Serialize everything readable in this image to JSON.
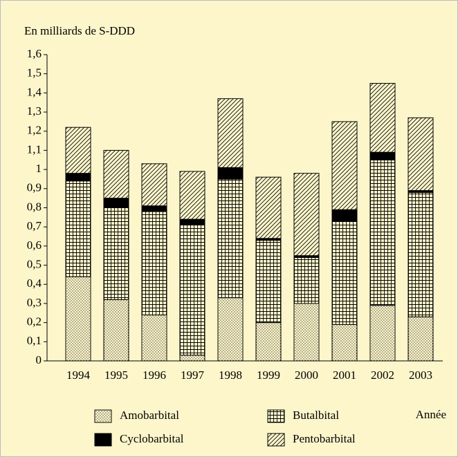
{
  "chart_data": {
    "type": "stacked_bar",
    "y_axis_label": "En milliards de S-DDD",
    "x_axis_label": "Année",
    "categories": [
      "1994",
      "1995",
      "1996",
      "1997",
      "1998",
      "1999",
      "2000",
      "2001",
      "2002",
      "2003"
    ],
    "series": [
      {
        "name": "Amobarbital",
        "color": "#000000",
        "pattern": "dots",
        "values": [
          0.44,
          0.32,
          0.24,
          0.03,
          0.33,
          0.2,
          0.3,
          0.19,
          0.29,
          0.23
        ]
      },
      {
        "name": "Butalbital",
        "color": "#000000",
        "pattern": "grid",
        "values": [
          0.5,
          0.48,
          0.54,
          0.68,
          0.62,
          0.43,
          0.24,
          0.54,
          0.76,
          0.65
        ]
      },
      {
        "name": "Cyclobarbital",
        "color": "#000000",
        "pattern": "solid",
        "values": [
          0.04,
          0.05,
          0.03,
          0.03,
          0.06,
          0.01,
          0.01,
          0.06,
          0.04,
          0.01
        ]
      },
      {
        "name": "Pentobarbital",
        "color": "#000000",
        "pattern": "hatch",
        "values": [
          0.24,
          0.25,
          0.22,
          0.25,
          0.36,
          0.32,
          0.43,
          0.46,
          0.36,
          0.38
        ]
      }
    ],
    "ylim": [
      0,
      1.6
    ],
    "yticks": [
      0,
      {
        "value": 0.1,
        "label": "0,1"
      },
      {
        "value": 0.2,
        "label": "0,2"
      },
      {
        "value": 0.3,
        "label": "0,3"
      },
      {
        "value": 0.4,
        "label": "0,4"
      },
      {
        "value": 0.5,
        "label": "0,5"
      },
      {
        "value": 0.6,
        "label": "0,6"
      },
      {
        "value": 0.7,
        "label": "0,7"
      },
      {
        "value": 0.8,
        "label": "0,8"
      },
      {
        "value": 0.9,
        "label": "0,9"
      },
      1,
      {
        "value": 1.1,
        "label": "1,1"
      },
      {
        "value": 1.2,
        "label": "1,2"
      },
      {
        "value": 1.3,
        "label": "1,3"
      },
      {
        "value": 1.4,
        "label": "1,4"
      },
      {
        "value": 1.5,
        "label": "1,5"
      },
      {
        "value": 1.6,
        "label": "1,6"
      }
    ],
    "grid": false
  }
}
